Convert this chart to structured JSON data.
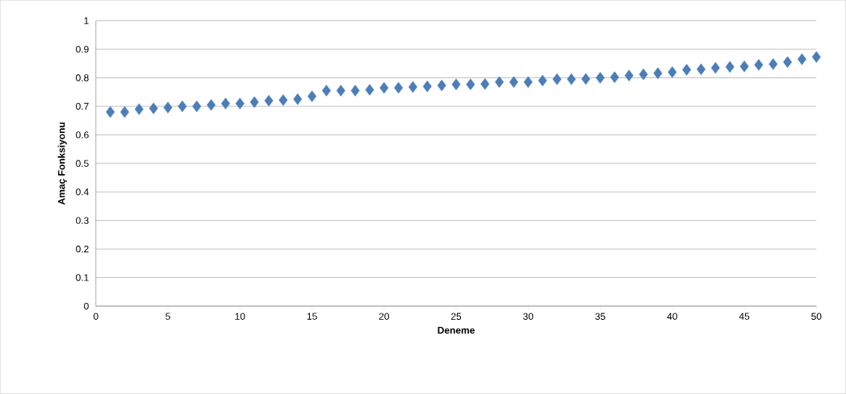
{
  "chart_data": {
    "type": "scatter",
    "xlabel": "Deneme",
    "ylabel": "Amaç Fonksiyonu",
    "x": [
      1,
      2,
      3,
      4,
      5,
      6,
      7,
      8,
      9,
      10,
      11,
      12,
      13,
      14,
      15,
      16,
      17,
      18,
      19,
      20,
      21,
      22,
      23,
      24,
      25,
      26,
      27,
      28,
      29,
      30,
      31,
      32,
      33,
      34,
      35,
      36,
      37,
      38,
      39,
      40,
      41,
      42,
      43,
      44,
      45,
      46,
      47,
      48,
      49,
      50
    ],
    "values": [
      0.68,
      0.68,
      0.69,
      0.693,
      0.696,
      0.7,
      0.7,
      0.705,
      0.71,
      0.71,
      0.715,
      0.72,
      0.722,
      0.725,
      0.735,
      0.755,
      0.755,
      0.755,
      0.758,
      0.765,
      0.765,
      0.768,
      0.77,
      0.773,
      0.777,
      0.777,
      0.778,
      0.785,
      0.785,
      0.785,
      0.79,
      0.795,
      0.795,
      0.796,
      0.8,
      0.802,
      0.808,
      0.812,
      0.816,
      0.82,
      0.828,
      0.83,
      0.835,
      0.838,
      0.84,
      0.845,
      0.848,
      0.855,
      0.865,
      0.873
    ],
    "color": "#4a7ebb",
    "marker": "diamond",
    "xlim": [
      0,
      50
    ],
    "ylim": [
      0,
      1
    ],
    "xticks": [
      0,
      5,
      10,
      15,
      20,
      25,
      30,
      35,
      40,
      45,
      50
    ],
    "yticks": [
      0,
      0.1,
      0.2,
      0.3,
      0.4,
      0.5,
      0.6,
      0.7,
      0.8,
      0.9,
      1
    ],
    "grid": "y"
  }
}
